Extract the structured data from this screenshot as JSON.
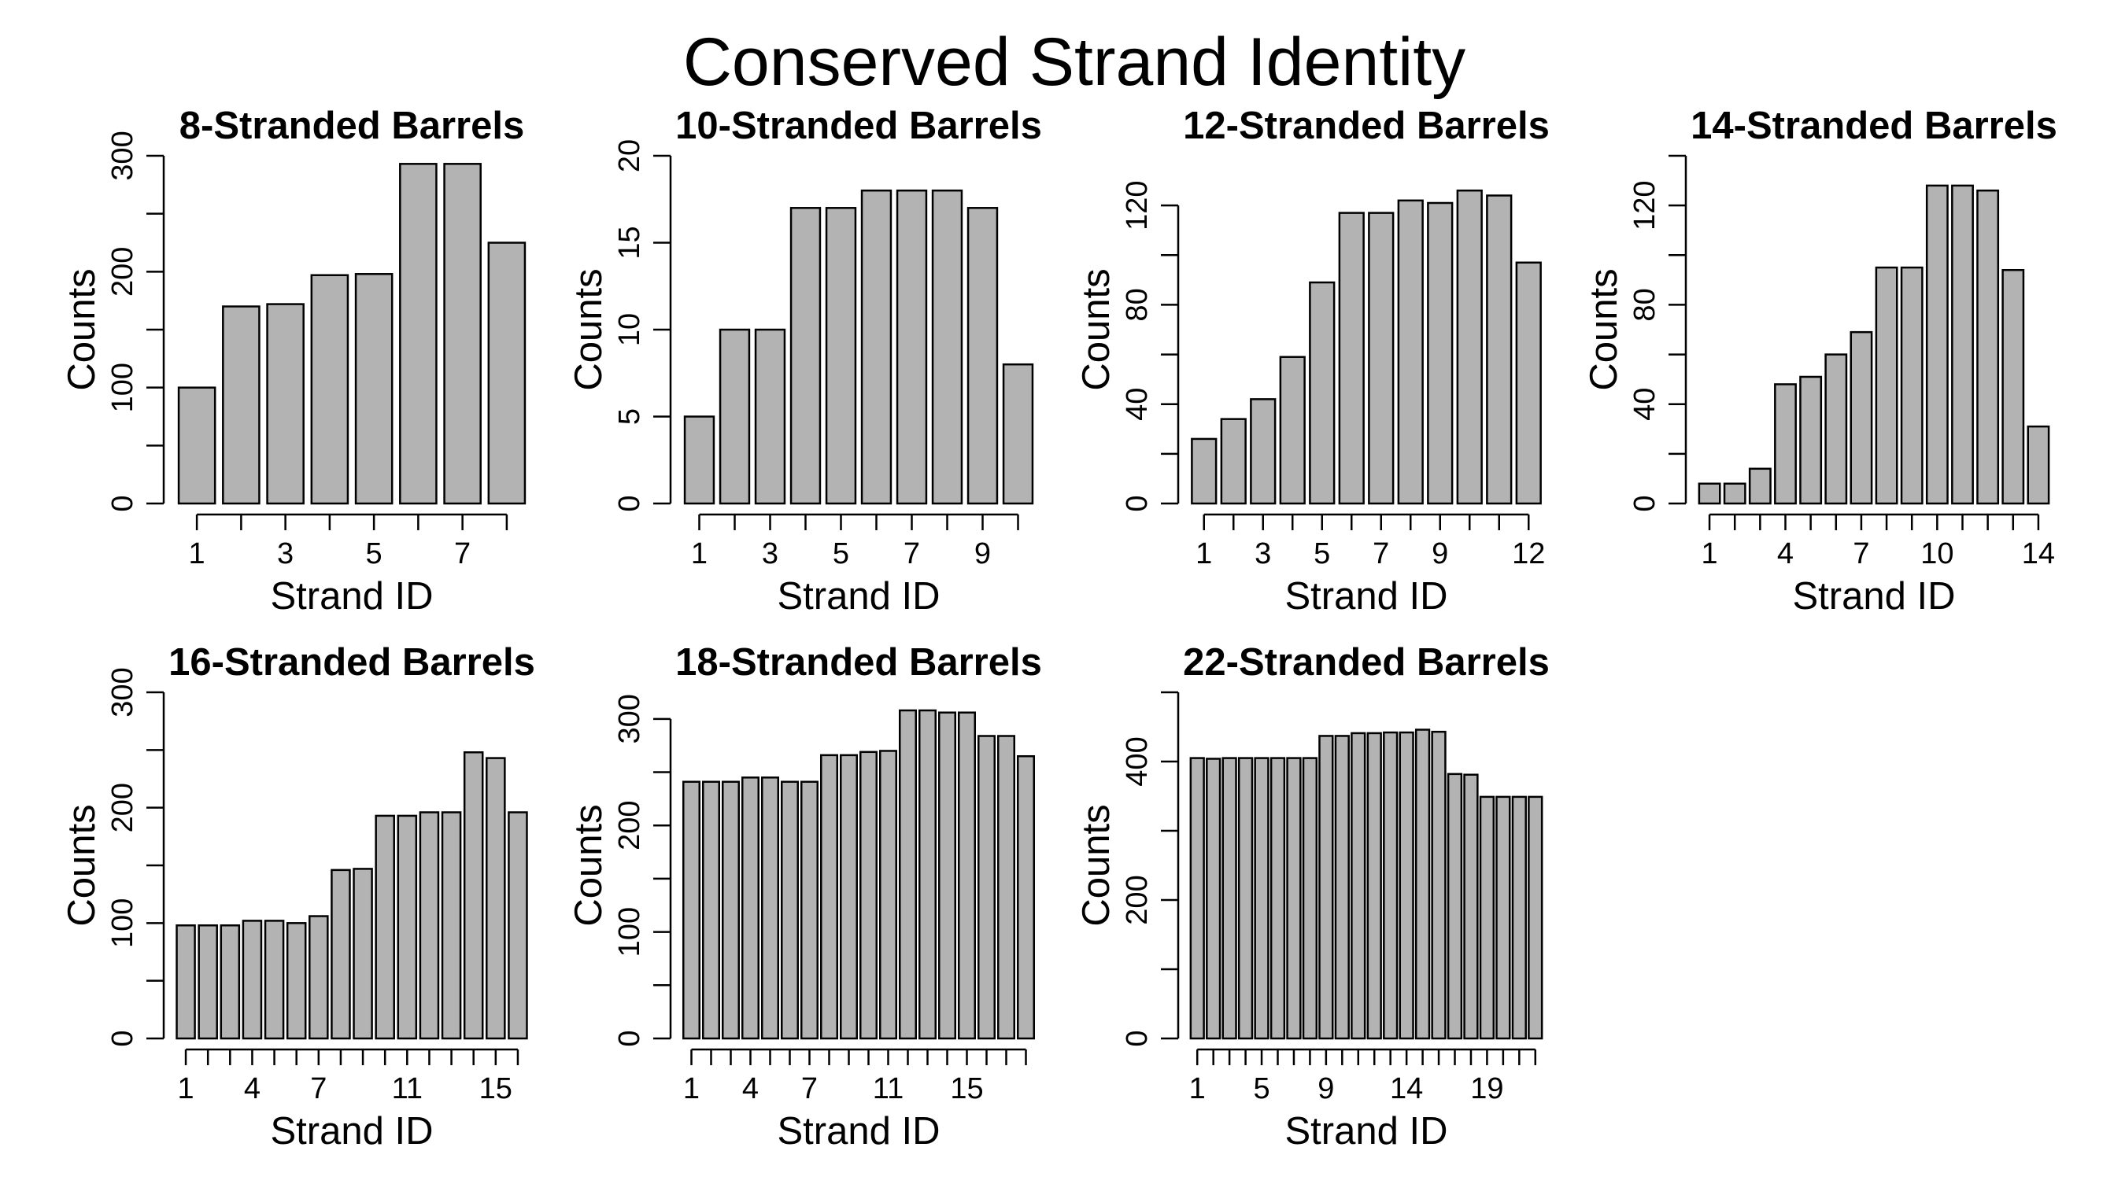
{
  "title": "Conserved Strand Identity",
  "style": {
    "bar_fill": "#b3b3b3",
    "bar_stroke": "#000000"
  },
  "chart_data": [
    {
      "type": "bar",
      "title": "8-Stranded Barrels",
      "xlabel": "Strand ID",
      "ylabel": "Counts",
      "categories": [
        1,
        2,
        3,
        4,
        5,
        6,
        7,
        8
      ],
      "tick_labels": [
        "1",
        "3",
        "5",
        "7"
      ],
      "label_every": 2,
      "values": [
        100,
        170,
        172,
        197,
        198,
        293,
        293,
        225
      ],
      "ylim": [
        0,
        300
      ],
      "yticks": [
        0,
        100,
        200,
        300
      ],
      "yminor": [
        50,
        150,
        250
      ]
    },
    {
      "type": "bar",
      "title": "10-Stranded Barrels",
      "xlabel": "Strand ID",
      "ylabel": "Counts",
      "categories": [
        1,
        2,
        3,
        4,
        5,
        6,
        7,
        8,
        9,
        10
      ],
      "tick_labels": [
        "1",
        "3",
        "5",
        "7",
        "9"
      ],
      "label_every": 2,
      "values": [
        5,
        10,
        10,
        17,
        17,
        18,
        18,
        18,
        17,
        8
      ],
      "ylim": [
        0,
        20
      ],
      "yticks": [
        0,
        5,
        10,
        15,
        20
      ],
      "yminor": []
    },
    {
      "type": "bar",
      "title": "12-Stranded Barrels",
      "xlabel": "Strand ID",
      "ylabel": "Counts",
      "categories": [
        1,
        2,
        3,
        4,
        5,
        6,
        7,
        8,
        9,
        10,
        11,
        12
      ],
      "tick_labels": [
        "1",
        "3",
        "5",
        "7",
        "9",
        "12"
      ],
      "label_positions": [
        1,
        3,
        5,
        7,
        9,
        12
      ],
      "values": [
        26,
        34,
        42,
        59,
        89,
        117,
        117,
        122,
        121,
        126,
        124,
        97
      ],
      "ylim": [
        0,
        140
      ],
      "yticks": [
        0,
        40,
        80,
        120
      ],
      "yminor": [
        20,
        60,
        100
      ]
    },
    {
      "type": "bar",
      "title": "14-Stranded Barrels",
      "xlabel": "Strand ID",
      "ylabel": "Counts",
      "categories": [
        1,
        2,
        3,
        4,
        5,
        6,
        7,
        8,
        9,
        10,
        11,
        12,
        13,
        14
      ],
      "tick_labels": [
        "1",
        "4",
        "7",
        "10",
        "14"
      ],
      "label_positions": [
        1,
        4,
        7,
        10,
        14
      ],
      "values": [
        8,
        8,
        14,
        48,
        51,
        60,
        69,
        95,
        95,
        128,
        128,
        126,
        94,
        31
      ],
      "ylim": [
        0,
        140
      ],
      "yticks": [
        0,
        40,
        80,
        120
      ],
      "yminor": [
        20,
        60,
        100,
        140
      ]
    },
    {
      "type": "bar",
      "title": "16-Stranded Barrels",
      "xlabel": "Strand ID",
      "ylabel": "Counts",
      "categories": [
        1,
        2,
        3,
        4,
        5,
        6,
        7,
        8,
        9,
        10,
        11,
        12,
        13,
        14,
        15,
        16
      ],
      "tick_labels": [
        "1",
        "4",
        "7",
        "11",
        "15"
      ],
      "label_positions": [
        1,
        4,
        7,
        11,
        15
      ],
      "values": [
        98,
        98,
        98,
        102,
        102,
        100,
        106,
        146,
        147,
        193,
        193,
        196,
        196,
        248,
        243,
        196
      ],
      "ylim": [
        0,
        300
      ],
      "yticks": [
        0,
        100,
        200,
        300
      ],
      "yminor": [
        50,
        150,
        250
      ]
    },
    {
      "type": "bar",
      "title": "18-Stranded Barrels",
      "xlabel": "Strand ID",
      "ylabel": "Counts",
      "categories": [
        1,
        2,
        3,
        4,
        5,
        6,
        7,
        8,
        9,
        10,
        11,
        12,
        13,
        14,
        15,
        16,
        17,
        18
      ],
      "tick_labels": [
        "1",
        "4",
        "7",
        "11",
        "15"
      ],
      "label_positions": [
        1,
        4,
        7,
        11,
        15
      ],
      "values": [
        241,
        241,
        241,
        245,
        245,
        241,
        241,
        266,
        266,
        269,
        270,
        308,
        308,
        306,
        306,
        284,
        284,
        265
      ],
      "ylim": [
        0,
        325
      ],
      "yticks": [
        0,
        100,
        200,
        300
      ],
      "yminor": [
        50,
        150,
        250
      ]
    },
    {
      "type": "bar",
      "title": "22-Stranded Barrels",
      "xlabel": "Strand ID",
      "ylabel": "Counts",
      "categories": [
        1,
        2,
        3,
        4,
        5,
        6,
        7,
        8,
        9,
        10,
        11,
        12,
        13,
        14,
        15,
        16,
        17,
        18,
        19,
        20,
        21,
        22
      ],
      "tick_labels": [
        "1",
        "5",
        "9",
        "14",
        "19"
      ],
      "label_positions": [
        1,
        5,
        9,
        14,
        19
      ],
      "values": [
        405,
        404,
        405,
        405,
        405,
        405,
        405,
        405,
        437,
        437,
        441,
        441,
        442,
        442,
        446,
        443,
        382,
        381,
        349,
        349,
        349,
        349
      ],
      "ylim": [
        0,
        500
      ],
      "yticks": [
        0,
        200,
        400
      ],
      "yminor": [
        100,
        300,
        500
      ]
    }
  ]
}
